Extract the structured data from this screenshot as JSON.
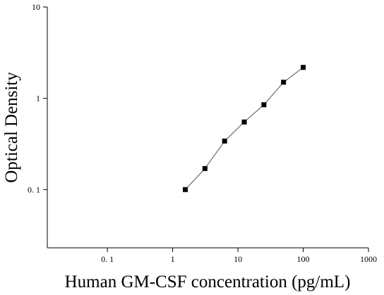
{
  "chart_data": {
    "type": "scatter",
    "x_label": "Human GM-CSF concentration (pg/mL)",
    "y_label": "Optical Density",
    "x": [
      1.5625,
      3.125,
      6.25,
      12.5,
      25,
      50,
      100
    ],
    "values": [
      0.1,
      0.17,
      0.34,
      0.55,
      0.85,
      1.5,
      2.18
    ],
    "color": "#000000",
    "log_x": true,
    "log_y": true,
    "xlim": [
      0.012,
      1000
    ],
    "ylim": [
      0.023,
      10
    ],
    "xticks": [
      {
        "value": 0.1,
        "label": "0. 1"
      },
      1,
      10,
      100,
      1000
    ],
    "yticks": [
      {
        "value": 0.1,
        "label": "0. 1"
      },
      1,
      10
    ],
    "fit_line": true
  }
}
